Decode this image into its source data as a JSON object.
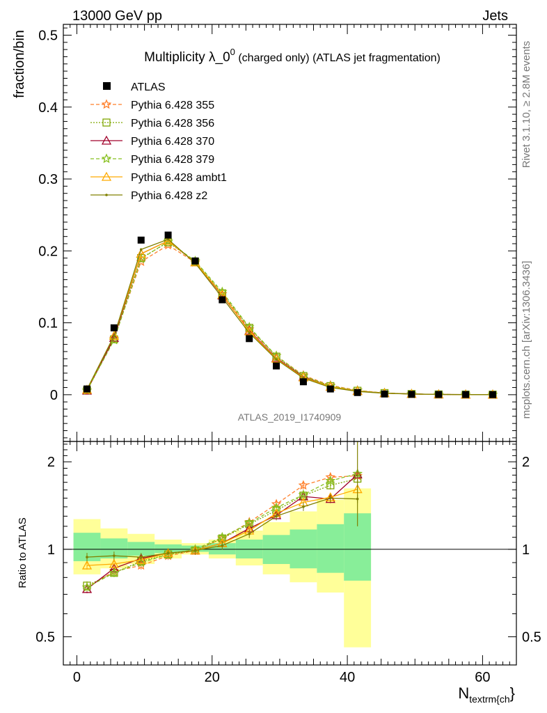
{
  "header": {
    "left": "13000 GeV pp",
    "right": "Jets"
  },
  "side_labels": {
    "rivet": "Rivet 3.1.10, ≥ 2.8M events",
    "mcplots": "mcplots.cern.ch [arXiv:1306.3436]"
  },
  "chart_data": {
    "type": "line",
    "title_main": "Multiplicity λ_0",
    "title_sup": "0",
    "title_rest": " (charged only) (ATLAS jet fragmentation)",
    "analysis_id": "ATLAS_2019_I1740909",
    "ylabel": "fraction/bin",
    "ratio_ylabel": "Ratio to ATLAS",
    "xlabel_main": "N",
    "xlabel_sub": "textrm{ch",
    "xlabel_end": "}",
    "xlim": [
      -2,
      65
    ],
    "ylim": [
      -0.065,
      0.515
    ],
    "ratio_ylim": [
      0.4,
      2.35
    ],
    "x_ticks": [
      "0",
      "20",
      "40",
      "60"
    ],
    "y_ticks": [
      "0",
      "0.1",
      "0.2",
      "0.3",
      "0.4",
      "0.5"
    ],
    "ratio_ticks": [
      "0.5",
      "1",
      "2"
    ],
    "x": [
      1.5,
      5.5,
      9.5,
      13.5,
      17.5,
      21.5,
      25.5,
      29.5,
      33.5,
      37.5,
      41.5,
      45.5,
      49.5,
      53.5,
      57.5,
      61.5
    ],
    "data": {
      "name": "ATLAS",
      "values": [
        0.008,
        0.093,
        0.215,
        0.222,
        0.186,
        0.132,
        0.078,
        0.04,
        0.018,
        0.008,
        0.003,
        0.001,
        0.0005,
        0.0003,
        0.0002,
        0.0001
      ]
    },
    "band_edges": [
      -0.5,
      3.5,
      7.5,
      11.5,
      15.5,
      19.5,
      23.5,
      27.5,
      31.5,
      35.5,
      39.5,
      43.5
    ],
    "band_stat": [
      [
        0.91,
        1.14
      ],
      [
        0.93,
        1.09
      ],
      [
        0.95,
        1.06
      ],
      [
        0.97,
        1.04
      ],
      [
        0.98,
        1.03
      ],
      [
        0.96,
        1.05
      ],
      [
        0.93,
        1.08
      ],
      [
        0.89,
        1.12
      ],
      [
        0.86,
        1.17
      ],
      [
        0.83,
        1.22
      ],
      [
        0.78,
        1.33
      ]
    ],
    "band_tot": [
      [
        0.82,
        1.27
      ],
      [
        0.86,
        1.18
      ],
      [
        0.89,
        1.13
      ],
      [
        0.93,
        1.08
      ],
      [
        0.96,
        1.05
      ],
      [
        0.93,
        1.08
      ],
      [
        0.88,
        1.16
      ],
      [
        0.82,
        1.24
      ],
      [
        0.77,
        1.35
      ],
      [
        0.71,
        1.48
      ],
      [
        0.46,
        1.62
      ]
    ],
    "series": [
      {
        "name": "Pythia 6.428 355",
        "color": "#ff7f2a",
        "dash": "5,3",
        "marker": "star",
        "values": [
          0.0058,
          0.078,
          0.185,
          0.208,
          0.184,
          0.14,
          0.091,
          0.054,
          0.027,
          0.013,
          0.006,
          0.0024,
          0.001,
          0.0004,
          0.0002,
          0.0001
        ],
        "ratio": [
          0.74,
          0.84,
          0.88,
          0.95,
          0.99,
          1.09,
          1.24,
          1.43,
          1.66,
          1.77,
          1.79
        ]
      },
      {
        "name": "Pythia 6.428 356",
        "color": "#7fa600",
        "dash": "2,2",
        "marker": "square",
        "values": [
          0.006,
          0.077,
          0.19,
          0.212,
          0.185,
          0.141,
          0.093,
          0.053,
          0.026,
          0.012,
          0.0055,
          0.0023,
          0.001,
          0.0004,
          0.0002,
          0.0001
        ],
        "ratio": [
          0.75,
          0.83,
          0.91,
          0.96,
          0.99,
          1.09,
          1.22,
          1.36,
          1.53,
          1.66,
          1.75
        ]
      },
      {
        "name": "Pythia 6.428 370",
        "color": "#a0002a",
        "dash": "",
        "marker": "triangle",
        "values": [
          0.0057,
          0.079,
          0.196,
          0.214,
          0.184,
          0.138,
          0.089,
          0.051,
          0.025,
          0.011,
          0.0053,
          0.0022,
          0.001,
          0.0004,
          0.0002,
          0.0001
        ],
        "ratio": [
          0.73,
          0.86,
          0.93,
          0.97,
          0.99,
          1.05,
          1.18,
          1.31,
          1.52,
          1.49,
          1.81
        ]
      },
      {
        "name": "Pythia 6.428 379",
        "color": "#88c020",
        "dash": "5,3",
        "marker": "star",
        "values": [
          0.0059,
          0.076,
          0.189,
          0.213,
          0.186,
          0.143,
          0.094,
          0.054,
          0.026,
          0.012,
          0.0056,
          0.0023,
          0.001,
          0.0004,
          0.0002,
          0.0001
        ],
        "ratio": [
          0.74,
          0.83,
          0.9,
          0.96,
          1.0,
          1.1,
          1.23,
          1.39,
          1.54,
          1.72,
          1.82
        ]
      },
      {
        "name": "Pythia 6.428 ambt1",
        "color": "#ffaa00",
        "dash": "",
        "marker": "triangle",
        "values": [
          0.007,
          0.082,
          0.196,
          0.214,
          0.184,
          0.139,
          0.088,
          0.05,
          0.024,
          0.011,
          0.005,
          0.0021,
          0.001,
          0.0004,
          0.0002,
          0.0001
        ],
        "ratio": [
          0.88,
          0.89,
          0.92,
          0.97,
          0.99,
          1.05,
          1.16,
          1.33,
          1.45,
          1.51,
          1.61
        ]
      },
      {
        "name": "Pythia 6.428 z2",
        "color": "#808000",
        "dash": "",
        "marker": "dot",
        "values": [
          0.0075,
          0.082,
          0.202,
          0.216,
          0.183,
          0.135,
          0.086,
          0.049,
          0.023,
          0.01,
          0.0045,
          0.002,
          0.001,
          0.0004,
          0.0002,
          0.0001
        ],
        "ratio": [
          0.94,
          0.95,
          0.94,
          0.97,
          0.99,
          1.03,
          1.13,
          1.3,
          1.4,
          1.5,
          1.49
        ]
      }
    ]
  }
}
